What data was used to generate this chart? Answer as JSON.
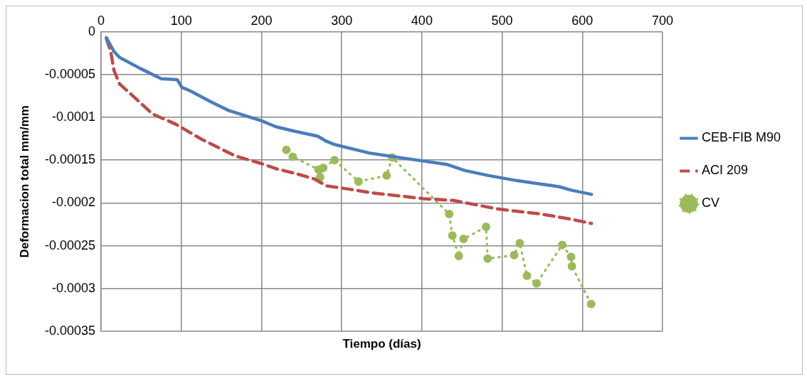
{
  "chart_data": {
    "type": "line",
    "xlabel": "Tiempo (días)",
    "ylabel": "Deformacion total mm/mm",
    "xlim": [
      0,
      700
    ],
    "xticks": [
      0,
      100,
      200,
      300,
      400,
      500,
      600,
      700
    ],
    "ylim": [
      -0.00035,
      0
    ],
    "yticks": [
      -0.00035,
      -0.0003,
      -0.00025,
      -0.0002,
      -0.00015,
      -0.0001,
      {
        "value": -5e-05,
        "label": "-0.00005"
      },
      0
    ],
    "grid": true,
    "legend": "right",
    "series": [
      {
        "name": "CEB-FIB M90",
        "color": "#4a7ebb",
        "line_style": "solid",
        "marker": "none",
        "x": [
          6.6,
          16,
          23,
          49,
          75,
          95,
          100.7,
          111,
          137,
          159,
          200,
          218,
          240,
          270,
          281,
          292,
          336,
          365,
          431,
          453,
          483,
          519,
          571,
          586,
          611.5
        ],
        "values": [
          -7e-06,
          -2.3e-05,
          -3e-05,
          -4.3e-05,
          -5.5e-05,
          -5.6e-05,
          -6.5e-05,
          -6.9e-05,
          -8.2e-05,
          -9.2e-05,
          -0.000104,
          -0.000111,
          -0.000116,
          -0.000122,
          -0.000128,
          -0.000132,
          -0.000142,
          -0.000146,
          -0.000155,
          -0.000162,
          -0.000168,
          -0.000174,
          -0.000181,
          -0.000185,
          -0.00019
        ]
      },
      {
        "name": "ACI 209",
        "color": "#be4b48",
        "line_style": "dashed",
        "marker": "none",
        "x": [
          6.6,
          12,
          16,
          23,
          42,
          64,
          93,
          126,
          167,
          200,
          218,
          244,
          266,
          281,
          310,
          336,
          402,
          439,
          494,
          549,
          586,
          611.5
        ],
        "values": [
          -8e-06,
          -2.3e-05,
          -4.5e-05,
          -6.1e-05,
          -7.7e-05,
          -9.6e-05,
          -0.000108,
          -0.000126,
          -0.000145,
          -0.000154,
          -0.00016,
          -0.000166,
          -0.000172,
          -0.00018,
          -0.000184,
          -0.000188,
          -0.000195,
          -0.000197,
          -0.000207,
          -0.000213,
          -0.000219,
          -0.000224
        ]
      },
      {
        "name": "CV",
        "color": "#9bbb59",
        "line_style": "dotted",
        "marker": "circle",
        "x": [
          231,
          239,
          271,
          273,
          277,
          291,
          321,
          356,
          363,
          434,
          438,
          446,
          452,
          480,
          482,
          515,
          522,
          531,
          543,
          575,
          586,
          587,
          611
        ],
        "values": [
          -0.000138,
          -0.000146,
          -0.000161,
          -0.00017,
          -0.000159,
          -0.00015,
          -0.000175,
          -0.000168,
          -0.000147,
          -0.000213,
          -0.000238,
          -0.000262,
          -0.000242,
          -0.000228,
          -0.000265,
          -0.000261,
          -0.000247,
          -0.000285,
          -0.000294,
          -0.000249,
          -0.000263,
          -0.000274,
          -0.000318
        ]
      }
    ]
  }
}
